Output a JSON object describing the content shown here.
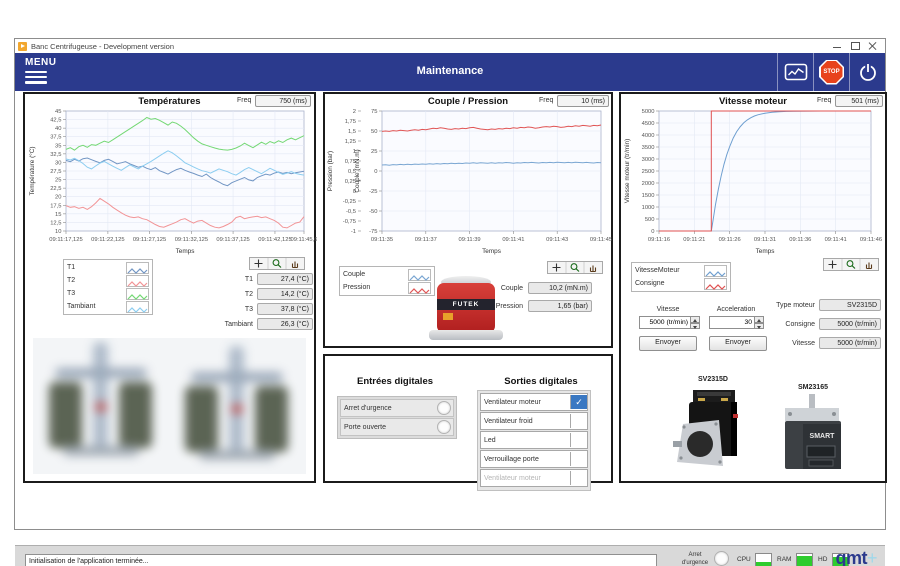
{
  "window": {
    "title": "Banc Centrifugeuse - Development version",
    "menu_label": "MENU",
    "header_title": "Maintenance",
    "stop_label": "STOP"
  },
  "chart_data": [
    {
      "id": "temperatures",
      "type": "line",
      "title": "Températures",
      "freq_label": "Freq",
      "freq_value": "750 (ms)",
      "xlabel": "Temps",
      "ylabel": "Température (°C)",
      "ylim": [
        10,
        45
      ],
      "y_tick_labels": [
        "45",
        "42,5",
        "40",
        "37,5",
        "35",
        "32,5",
        "30",
        "27,5",
        "25",
        "22,5",
        "20",
        "17,5",
        "15",
        "12,5",
        "10"
      ],
      "x_tick_pos": [
        0,
        0.176,
        0.351,
        0.527,
        0.702,
        0.878,
        1
      ],
      "x_tick_labels": [
        "09:11:17,125",
        "09:11:22,125",
        "09:11:27,125",
        "09:11:32,125",
        "09:11:37,125",
        "09:11:42,125",
        "09:11:45,6"
      ],
      "series": [
        {
          "name": "T1",
          "color": "#7296c4",
          "values": [
            30.6,
            30.2,
            30.9,
            30.4,
            31.1,
            31.3,
            30.8,
            30.3,
            29.9,
            30.6,
            30.9,
            30.3,
            29.6,
            29.9,
            30.2,
            29.6,
            29.1,
            28.6,
            28.9,
            28.3,
            27.9,
            28.5,
            27.6,
            27.1,
            26.6,
            27.3,
            27.9,
            28.3,
            27.7,
            27.2,
            26.8,
            26.3,
            25.9,
            26.6,
            25.6,
            24.9,
            24.3,
            23.6,
            23.2,
            24.1,
            24.6,
            25.1,
            25.6,
            24.9,
            24.6,
            25.6,
            26.1,
            26.6,
            26.3,
            26.9,
            27.2,
            26.8,
            27.1,
            26.7,
            27.0,
            27.2,
            27.4
          ]
        },
        {
          "name": "T2",
          "color": "#f29496",
          "values": [
            17.4,
            16.9,
            17.1,
            16.6,
            16.9,
            16.3,
            17.1,
            18.2,
            19.5,
            18.7,
            17.9,
            16.9,
            16.1,
            15.3,
            14.6,
            14.1,
            13.9,
            14.1,
            13.6,
            13.3,
            12.6,
            11.9,
            11.3,
            11.1,
            11.6,
            12.1,
            12.6,
            13.3,
            13.6,
            12.9,
            12.3,
            12.9,
            13.1,
            12.3,
            11.6,
            11.1,
            10.9,
            11.3,
            11.9,
            12.6,
            13.9,
            14.3,
            13.6,
            13.9,
            14.1,
            14.3,
            13.9,
            14.1,
            13.6,
            13.1,
            12.3,
            11.1,
            10.9,
            11.6,
            12.3,
            12.6,
            14.2
          ]
        },
        {
          "name": "T3",
          "color": "#74d874",
          "values": [
            33.8,
            34.3,
            33.6,
            34.6,
            35.0,
            34.4,
            35.2,
            35.0,
            35.6,
            36.2,
            35.8,
            36.6,
            37.4,
            38.2,
            39.0,
            39.8,
            40.6,
            41.4,
            42.2,
            43.1,
            42.6,
            42.8,
            42.3,
            41.6,
            40.9,
            41.8,
            41.4,
            40.6,
            39.6,
            38.4,
            37.2,
            36.2,
            35.4,
            35.0,
            34.6,
            34.2,
            33.9,
            33.7,
            33.6,
            33.8,
            34.2,
            34.8,
            35.6,
            34.9,
            34.3,
            35.1,
            35.9,
            35.3,
            36.1,
            35.6,
            36.3,
            35.8,
            36.6,
            37.1,
            36.6,
            37.2,
            37.8
          ]
        },
        {
          "name": "Tambiant",
          "color": "#8ccdf0",
          "values": [
            31.0,
            30.7,
            31.2,
            30.5,
            29.7,
            28.6,
            28.1,
            29.0,
            29.8,
            30.3,
            29.6,
            28.9,
            28.3,
            27.7,
            28.5,
            29.3,
            28.7,
            28.1,
            28.9,
            29.6,
            30.3,
            31.1,
            31.9,
            32.7,
            33.4,
            32.8,
            31.9,
            30.9,
            29.9,
            29.3,
            28.7,
            28.1,
            27.6,
            27.3,
            26.9,
            27.5,
            28.1,
            27.7,
            27.3,
            26.7,
            26.3,
            27.1,
            27.9,
            28.5,
            27.9,
            27.3,
            26.7,
            27.5,
            28.3,
            27.7,
            27.1,
            26.5,
            26.9,
            27.3,
            26.8,
            26.5,
            26.3
          ]
        }
      ],
      "readouts": [
        {
          "label": "T1",
          "value": "27,4 (°C)"
        },
        {
          "label": "T2",
          "value": "14,2 (°C)"
        },
        {
          "label": "T3",
          "value": "37,8 (°C)"
        },
        {
          "label": "Tambiant",
          "value": "26,3 (°C)"
        }
      ]
    },
    {
      "id": "couple_pression",
      "type": "line",
      "title": "Couple / Pression",
      "freq_label": "Freq",
      "freq_value": "10 (ms)",
      "xlabel": "Temps",
      "ylabel": "Couple (mN.m)",
      "outer_ylabel": "Pression (bar)",
      "ylim": [
        -75,
        75
      ],
      "y_tick_labels": [
        "75",
        "50",
        "25",
        "0",
        "-25",
        "-50",
        "-75"
      ],
      "outer_tick_labels": [
        "2",
        "1,75",
        "1,5",
        "1,25",
        "1",
        "0,75",
        "0,5",
        "0,25",
        "0",
        "-0,25",
        "-0,5",
        "-0,75",
        "-1"
      ],
      "x_tick_pos": [
        0,
        0.2,
        0.4,
        0.6,
        0.8,
        1
      ],
      "x_tick_labels": [
        "09:11:35",
        "09:11:37",
        "09:11:39",
        "09:11:41",
        "09:11:43",
        "09:11:45"
      ],
      "series": [
        {
          "name": "Couple",
          "color": "#7aa6d2",
          "values": [
            7.5,
            7.8,
            7.2,
            8.0,
            7.6,
            8.2,
            7.9,
            8.4,
            8.0,
            8.6,
            8.2,
            8.8,
            8.5,
            9.0,
            8.6,
            9.2,
            8.8,
            9.4,
            9.0,
            9.6,
            9.2,
            9.8,
            9.4,
            10.0,
            9.6,
            10.2,
            9.8,
            10.4,
            10.0,
            9.6,
            10.2,
            9.8,
            10.4,
            10.0,
            10.6,
            10.2,
            9.8,
            10.4,
            10.0,
            10.6,
            10.2,
            10.8,
            10.4,
            10.0,
            10.6,
            10.2,
            10.8,
            10.4,
            11.0,
            10.6,
            10.2,
            10.8,
            10.4,
            11.0,
            10.6,
            10.2,
            10.8,
            10.4,
            10.0,
            10.6,
            10.2
          ]
        },
        {
          "name": "Pression",
          "color": "#e05555",
          "ylim": [
            -1,
            2
          ],
          "values": [
            1.49,
            1.5,
            1.49,
            1.51,
            1.5,
            1.52,
            1.51,
            1.5,
            1.52,
            1.53,
            1.52,
            1.54,
            1.53,
            1.55,
            1.57,
            1.56,
            1.58,
            1.57,
            1.55,
            1.54,
            1.56,
            1.55,
            1.57,
            1.56,
            1.58,
            1.59,
            1.57,
            1.55,
            1.54,
            1.53,
            1.55,
            1.54,
            1.56,
            1.55,
            1.57,
            1.56,
            1.58,
            1.57,
            1.59,
            1.58,
            1.6,
            1.59,
            1.57,
            1.58,
            1.6,
            1.61,
            1.6,
            1.62,
            1.61,
            1.59,
            1.6,
            1.62,
            1.61,
            1.63,
            1.62,
            1.64,
            1.63,
            1.62,
            1.64,
            1.63,
            1.65
          ]
        }
      ],
      "readouts": [
        {
          "label": "Couple",
          "value": "10,2 (mN.m)"
        },
        {
          "label": "Pression",
          "value": "1,65 (bar)"
        }
      ]
    },
    {
      "id": "vitesse_moteur",
      "type": "line",
      "title": "Vitesse moteur",
      "freq_label": "Freq",
      "freq_value": "501 (ms)",
      "xlabel": "Temps",
      "ylabel": "Vitesse moteur (tr/min)",
      "ylim": [
        0,
        5000
      ],
      "xlim": [
        16,
        46
      ],
      "y_tick_labels": [
        "5000",
        "4500",
        "4000",
        "3500",
        "3000",
        "2500",
        "2000",
        "1500",
        "1000",
        "500",
        "0"
      ],
      "x_tick_pos": [
        0,
        0.1667,
        0.3333,
        0.5,
        0.6667,
        0.8333,
        1
      ],
      "x_tick_labels": [
        "09:11:16",
        "09:11:21",
        "09:11:26",
        "09:11:31",
        "09:11:36",
        "09:11:41",
        "09:11:46"
      ],
      "series": [
        {
          "name": "VitesseMoteur",
          "color": "#6f9fd0",
          "points": [
            [
              16,
              0
            ],
            [
              23.4,
              0
            ],
            [
              23.6,
              350
            ],
            [
              24,
              1100
            ],
            [
              24.4,
              1750
            ],
            [
              24.8,
              2300
            ],
            [
              25.2,
              2780
            ],
            [
              25.6,
              3180
            ],
            [
              26,
              3520
            ],
            [
              26.5,
              3870
            ],
            [
              27,
              4140
            ],
            [
              27.5,
              4350
            ],
            [
              28,
              4510
            ],
            [
              28.5,
              4630
            ],
            [
              29,
              4720
            ],
            [
              29.5,
              4790
            ],
            [
              30,
              4840
            ],
            [
              31,
              4910
            ],
            [
              32,
              4950
            ],
            [
              33,
              4970
            ],
            [
              34,
              4982
            ],
            [
              35,
              4990
            ],
            [
              37,
              4996
            ],
            [
              39,
              4999
            ],
            [
              42,
              5000
            ],
            [
              46,
              5000
            ]
          ]
        },
        {
          "name": "Consigne",
          "color": "#e05050",
          "points": [
            [
              16,
              0
            ],
            [
              23.4,
              0
            ],
            [
              23.4,
              5000
            ],
            [
              46,
              5000
            ]
          ]
        }
      ]
    }
  ],
  "motor_panel": {
    "controls": {
      "vitesse_label": "Vitesse",
      "vitesse_value": "5000 (tr/min)",
      "accel_label": "Acceleration",
      "accel_value": "30",
      "send_label": "Envoyer"
    },
    "info": [
      {
        "label": "Type moteur",
        "value": "SV2315D"
      },
      {
        "label": "Consigne",
        "value": "5000 (tr/min)"
      },
      {
        "label": "Vitesse",
        "value": "5000 (tr/min)"
      }
    ],
    "motors": {
      "left_label": "SV2315D",
      "right_label": "SM23165",
      "right_brand": "SMART"
    }
  },
  "sensor": {
    "brand": "FUTEK"
  },
  "digital": {
    "inputs_title": "Entrées digitales",
    "inputs": [
      {
        "label": "Arret d'urgence"
      },
      {
        "label": "Porte ouverte"
      }
    ],
    "outputs_title": "Sorties digitales",
    "outputs": [
      {
        "label": "Ventilateur moteur",
        "checked": true,
        "disabled": false
      },
      {
        "label": "Ventilateur froid",
        "checked": false,
        "disabled": false
      },
      {
        "label": "Led",
        "checked": false,
        "disabled": false
      },
      {
        "label": "Verrouillage porte",
        "checked": false,
        "disabled": false
      },
      {
        "label": "Ventilateur moteur",
        "checked": false,
        "disabled": true
      }
    ]
  },
  "status_bar": {
    "message": "Initialisation de l'application terminée...",
    "emergency_line1": "Arret",
    "emergency_line2": "d'urgence",
    "gauges": [
      {
        "label": "CPU",
        "fill": 30
      },
      {
        "label": "RAM",
        "fill": 85
      },
      {
        "label": "HD",
        "fill": 75
      }
    ],
    "logo_text": "qmt",
    "logo_plus": "+"
  },
  "colors": {
    "header": "#2b3a8d",
    "stop_red": "#e8431c",
    "gauge_green": "#2ecc2e",
    "check_blue": "#3a78c2"
  }
}
